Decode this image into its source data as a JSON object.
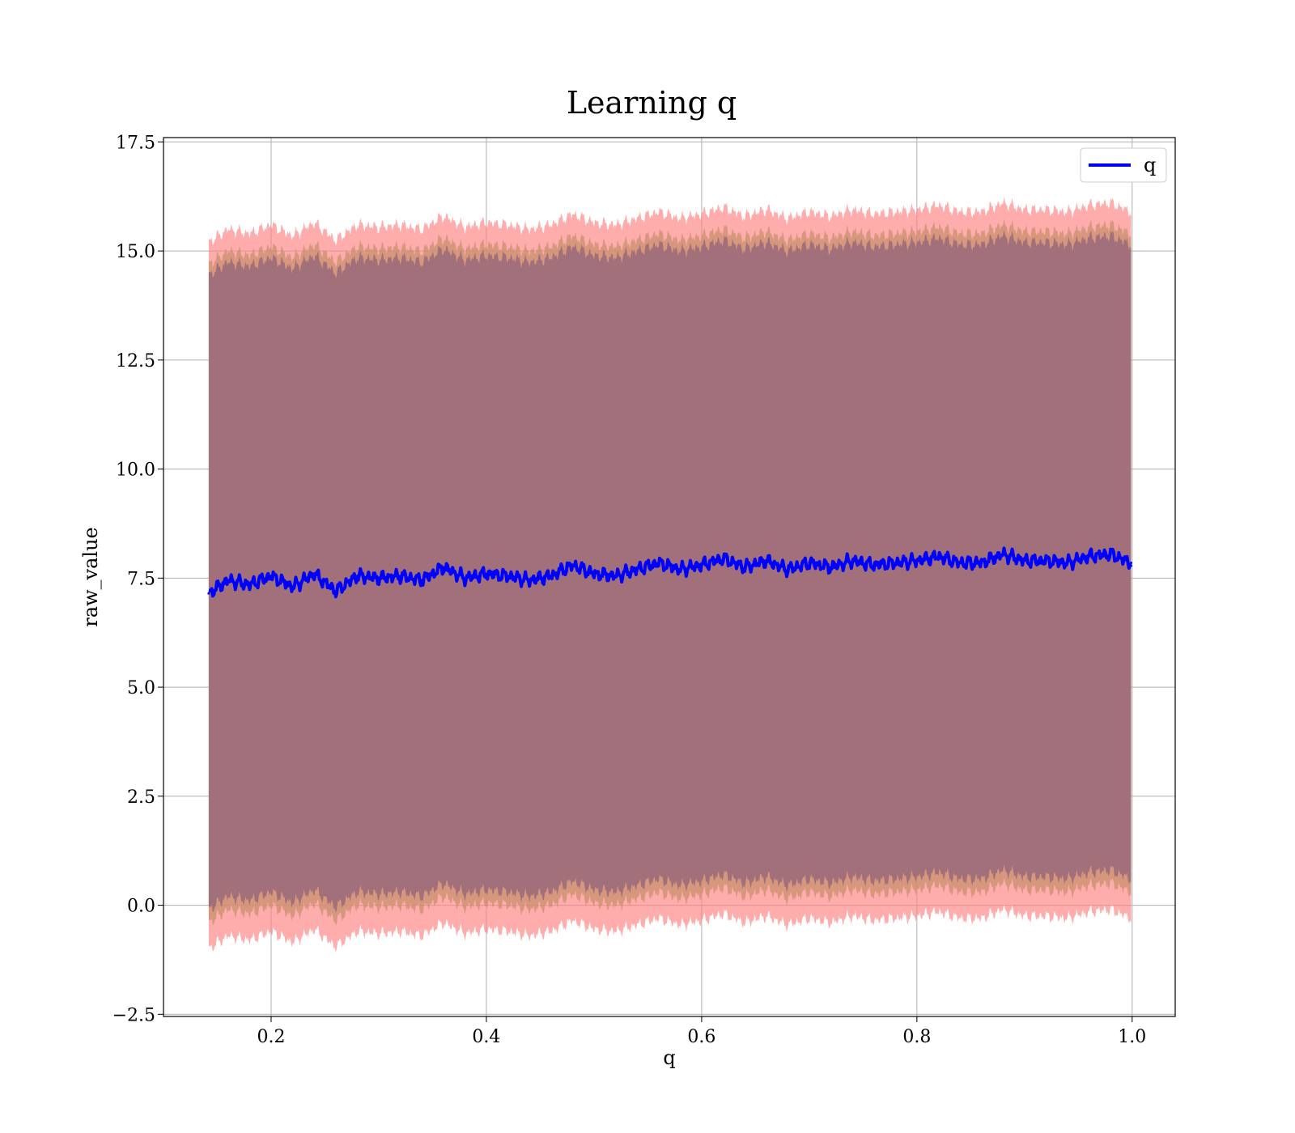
{
  "chart_data": {
    "type": "line",
    "title": "Learning q",
    "xlabel": "q",
    "ylabel": "raw_value",
    "xlim": [
      0.1,
      1.04
    ],
    "ylim": [
      -2.55,
      17.6
    ],
    "xticks": [
      0.2,
      0.4,
      0.6,
      0.8,
      1.0
    ],
    "xtick_labels": [
      "0.2",
      "0.4",
      "0.6",
      "0.8",
      "1.0"
    ],
    "yticks": [
      -2.5,
      0.0,
      2.5,
      5.0,
      7.5,
      10.0,
      12.5,
      15.0,
      17.5
    ],
    "ytick_labels": [
      "−2.5",
      "0.0",
      "2.5",
      "5.0",
      "7.5",
      "10.0",
      "12.5",
      "15.0",
      "17.5"
    ],
    "grid": true,
    "legend": {
      "position": "top-right",
      "entries": [
        "q"
      ]
    },
    "colors": {
      "line": "#0000ff",
      "outer_band": "#ff7f7f",
      "middle_band": "#c8906e",
      "inner_band": "#a1707a"
    },
    "series": [
      {
        "name": "q",
        "x": [
          0.142,
          0.16,
          0.18,
          0.2,
          0.22,
          0.24,
          0.26,
          0.28,
          0.3,
          0.32,
          0.34,
          0.36,
          0.38,
          0.4,
          0.42,
          0.44,
          0.46,
          0.48,
          0.5,
          0.52,
          0.54,
          0.56,
          0.58,
          0.6,
          0.62,
          0.64,
          0.66,
          0.68,
          0.7,
          0.72,
          0.74,
          0.76,
          0.78,
          0.8,
          0.82,
          0.84,
          0.86,
          0.88,
          0.9,
          0.92,
          0.94,
          0.96,
          0.98,
          0.999
        ],
        "values": [
          7.15,
          7.45,
          7.35,
          7.55,
          7.3,
          7.6,
          7.2,
          7.55,
          7.5,
          7.55,
          7.45,
          7.75,
          7.5,
          7.6,
          7.55,
          7.45,
          7.55,
          7.8,
          7.6,
          7.55,
          7.7,
          7.85,
          7.7,
          7.8,
          7.95,
          7.75,
          7.9,
          7.7,
          7.85,
          7.75,
          7.9,
          7.8,
          7.85,
          7.9,
          8.0,
          7.85,
          7.85,
          8.05,
          7.9,
          7.9,
          7.85,
          8.0,
          8.05,
          7.85
        ]
      }
    ],
    "bands": [
      {
        "label": "outer",
        "lower_offset": -8.15,
        "upper_offset": 8.05
      },
      {
        "label": "middle",
        "lower_offset": -7.55,
        "upper_offset": 7.55
      },
      {
        "label": "inner",
        "lower_offset": -7.25,
        "upper_offset": 7.3
      }
    ]
  }
}
